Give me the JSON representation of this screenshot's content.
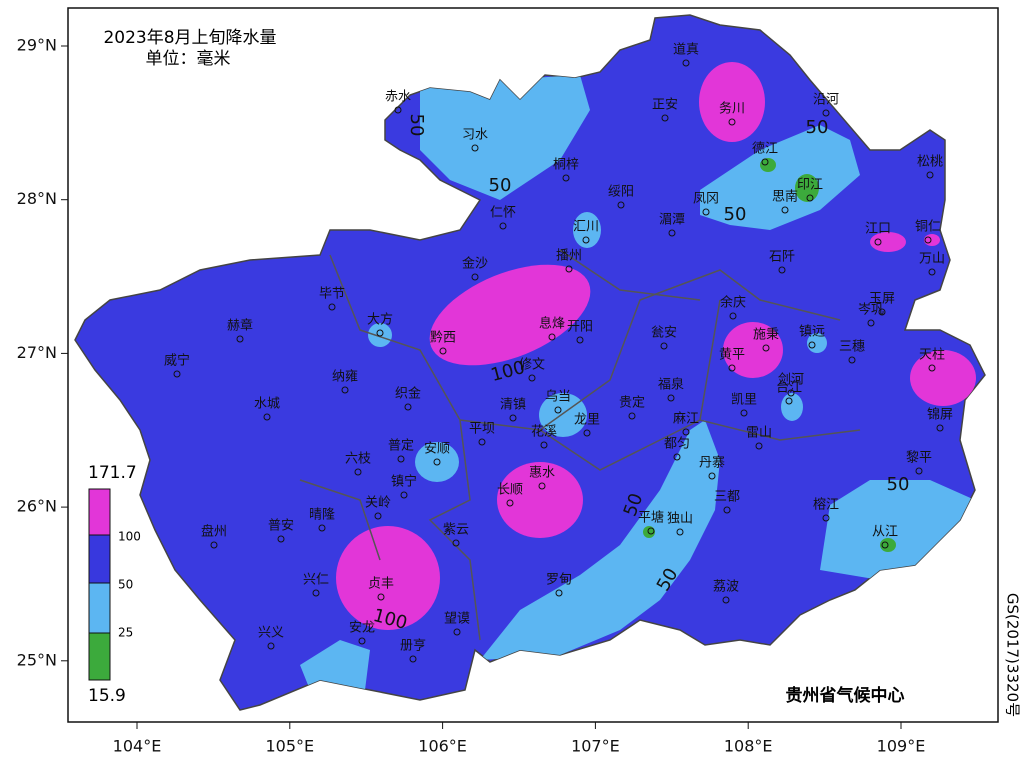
{
  "header": {
    "title": "2023年8月上旬降水量",
    "unit": "单位：毫米"
  },
  "axes": {
    "lat": [
      {
        "value": 29,
        "label": "29°N"
      },
      {
        "value": 28,
        "label": "28°N"
      },
      {
        "value": 27,
        "label": "27°N"
      },
      {
        "value": 26,
        "label": "26°N"
      },
      {
        "value": 25,
        "label": "25°N"
      }
    ],
    "lon": [
      {
        "value": 104,
        "label": "104°E"
      },
      {
        "value": 105,
        "label": "105°E"
      },
      {
        "value": 106,
        "label": "106°E"
      },
      {
        "value": 107,
        "label": "107°E"
      },
      {
        "value": 108,
        "label": "108°E"
      },
      {
        "value": 109,
        "label": "109°E"
      }
    ]
  },
  "legend": {
    "levels": [
      {
        "label": "171.7",
        "color": "#e236d8"
      },
      {
        "label": "100",
        "color": "#3838de"
      },
      {
        "label": "50",
        "color": "#5cb6f2"
      },
      {
        "label": "25",
        "color": "#3caa3c"
      },
      {
        "label": "15.9"
      }
    ]
  },
  "cities": [
    "赤水",
    "习水",
    "道真",
    "务川",
    "沿河",
    "正安",
    "桐梓",
    "德江",
    "印江",
    "松桃",
    "绥阳",
    "凤冈",
    "思南",
    "湄潭",
    "仁怀",
    "汇川",
    "江口",
    "铜仁",
    "万山",
    "金沙",
    "播州",
    "石阡",
    "毕节",
    "大方",
    "余庆",
    "玉屏",
    "岑巩",
    "赫章",
    "黔西",
    "息烽",
    "开阳",
    "瓮安",
    "施秉",
    "镇远",
    "三穗",
    "天柱",
    "威宁",
    "黄平",
    "纳雍",
    "修文",
    "剑河",
    "织金",
    "清镇",
    "乌当",
    "贵定",
    "福泉",
    "凯里",
    "台江",
    "锦屏",
    "水城",
    "平坝",
    "花溪",
    "龙里",
    "麻江",
    "雷山",
    "都匀",
    "普定",
    "安顺",
    "六枝",
    "黎平",
    "丹寨",
    "镇宁",
    "长顺",
    "惠水",
    "关岭",
    "三都",
    "盘州",
    "普安",
    "晴隆",
    "紫云",
    "平塘",
    "独山",
    "榕江",
    "从江",
    "兴仁",
    "贞丰",
    "罗甸",
    "荔波",
    "兴义",
    "安龙",
    "望谟",
    "册亨"
  ],
  "contour_labels": [
    "50",
    "50",
    "50",
    "50",
    "50",
    "50",
    "50",
    "100",
    "100"
  ],
  "footer": {
    "agency": "贵州省气候中心",
    "approval": "GS(2017)3320号"
  }
}
